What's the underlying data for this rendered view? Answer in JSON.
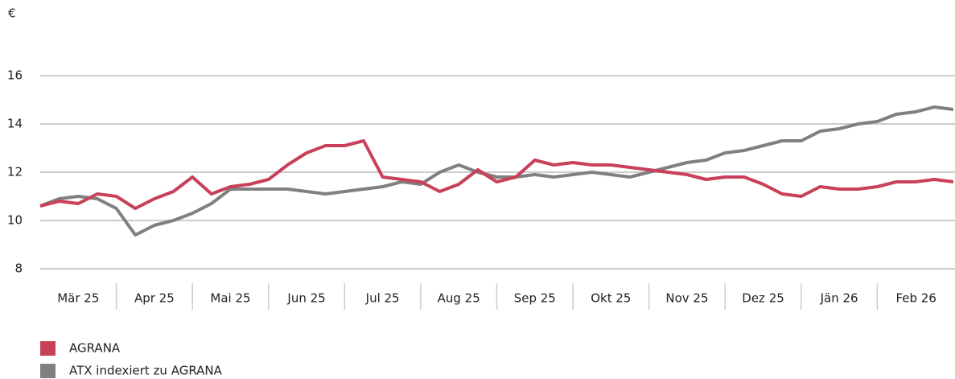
{
  "chart_data": {
    "type": "line",
    "y_axis_label": "€",
    "categories": [
      "Mär 25",
      null,
      null,
      null,
      "Apr 25",
      null,
      null,
      null,
      "Mai 25",
      null,
      null,
      null,
      "Jun 25",
      null,
      null,
      null,
      "Jul 25",
      null,
      null,
      null,
      "Aug 25",
      null,
      null,
      null,
      "Sep 25",
      null,
      null,
      null,
      "Okt 25",
      null,
      null,
      null,
      "Nov 25",
      null,
      null,
      null,
      "Dez 25",
      null,
      null,
      null,
      "Jän 26",
      null,
      null,
      null,
      "Feb 26",
      null,
      null,
      null,
      null
    ],
    "series": [
      {
        "name": "AGRANA",
        "color": "#c8405a",
        "values": [
          10.6,
          10.8,
          10.7,
          11.1,
          11.0,
          10.5,
          10.9,
          11.2,
          11.8,
          11.1,
          11.4,
          11.5,
          11.7,
          12.3,
          12.8,
          13.1,
          13.1,
          13.3,
          11.8,
          11.7,
          11.6,
          11.2,
          11.5,
          12.1,
          11.6,
          11.8,
          12.5,
          12.3,
          12.4,
          12.3,
          12.3,
          12.2,
          12.1,
          12.0,
          11.9,
          11.7,
          11.8,
          11.8,
          11.5,
          11.1,
          11.0,
          11.4,
          11.3,
          11.3,
          11.4,
          11.6,
          11.6,
          11.7,
          11.6
        ]
      },
      {
        "name": "ATX indexiert zu AGRANA",
        "color": "#808080",
        "values": [
          10.6,
          10.9,
          11.0,
          10.9,
          10.5,
          9.4,
          9.8,
          10.0,
          10.3,
          10.7,
          11.3,
          11.3,
          11.3,
          11.3,
          11.2,
          11.1,
          11.2,
          11.3,
          11.4,
          11.6,
          11.5,
          12.0,
          12.3,
          12.0,
          11.8,
          11.8,
          11.9,
          11.8,
          11.9,
          12.0,
          11.9,
          11.8,
          12.0,
          12.2,
          12.4,
          12.5,
          12.8,
          12.9,
          13.1,
          13.3,
          13.3,
          13.7,
          13.8,
          14.0,
          14.1,
          14.4,
          14.5,
          14.7,
          14.6
        ]
      }
    ],
    "ylim": [
      7.5,
      17.5
    ],
    "yticks": [
      8,
      10,
      12,
      14,
      16
    ],
    "grid": true
  }
}
